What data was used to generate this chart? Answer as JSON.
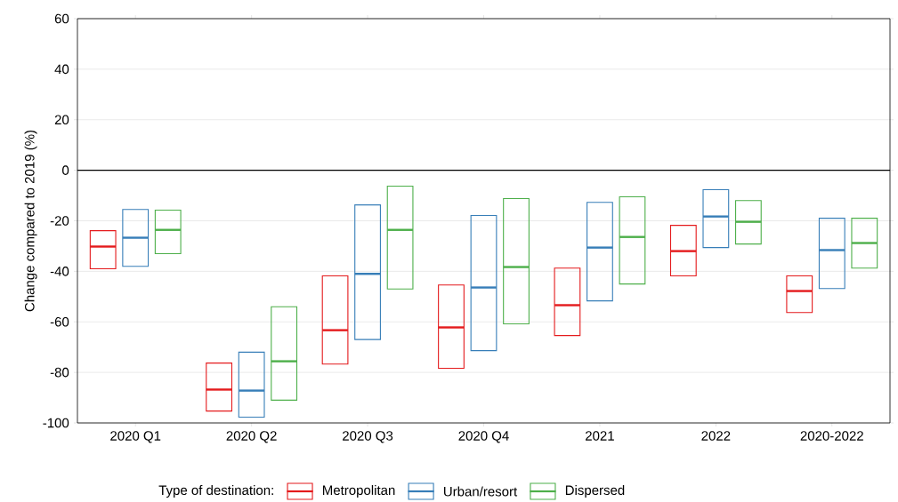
{
  "chart_data": {
    "type": "box",
    "ylabel": "Change compared to 2019 (%)",
    "legend_title": "Type of destination:",
    "categories": [
      "2020 Q1",
      "2020 Q2",
      "2020 Q3",
      "2020 Q4",
      "2021",
      "2022",
      "2020-2022"
    ],
    "ylim": [
      -100,
      60
    ],
    "yticks": [
      -100,
      -80,
      -60,
      -40,
      -20,
      0,
      20,
      40,
      60
    ],
    "grid": "y",
    "legend": "bottom",
    "ref_lines": [
      {
        "axis": "y",
        "value": 0,
        "color": "#000000"
      }
    ],
    "series": [
      {
        "name": "Metropolitan",
        "color": "#e41a1c",
        "boxes": [
          {
            "low": -39,
            "q1": -39,
            "median": -30.2,
            "q3": -23.9,
            "high": -23.9
          },
          {
            "low": -95.3,
            "q1": -95.3,
            "median": -86.8,
            "q3": -76.3,
            "high": -76.3
          },
          {
            "low": -76.7,
            "q1": -76.7,
            "median": -63.3,
            "q3": -41.8,
            "high": -41.8
          },
          {
            "low": -78.4,
            "q1": -78.4,
            "median": -62.2,
            "q3": -45.4,
            "high": -45.4
          },
          {
            "low": -65.4,
            "q1": -65.4,
            "median": -53.4,
            "q3": -38.7,
            "high": -38.7
          },
          {
            "low": -41.8,
            "q1": -41.8,
            "median": -32,
            "q3": -21.8,
            "high": -21.8
          },
          {
            "low": -56.3,
            "q1": -56.3,
            "median": -47.8,
            "q3": -41.8,
            "high": -41.8
          }
        ]
      },
      {
        "name": "Urban/resort",
        "color": "#377eb8",
        "boxes": [
          {
            "low": -38,
            "q1": -38,
            "median": -26.7,
            "q3": -15.5,
            "high": -15.5
          },
          {
            "low": -97.7,
            "q1": -97.7,
            "median": -87.2,
            "q3": -72,
            "high": -72
          },
          {
            "low": -67,
            "q1": -67,
            "median": -41,
            "q3": -13.7,
            "high": -13.7
          },
          {
            "low": -71.4,
            "q1": -71.4,
            "median": -46.4,
            "q3": -17.9,
            "high": -17.9
          },
          {
            "low": -51.7,
            "q1": -51.7,
            "median": -30.6,
            "q3": -12.7,
            "high": -12.7
          },
          {
            "low": -30.6,
            "q1": -30.6,
            "median": -18.3,
            "q3": -7.7,
            "high": -7.7
          },
          {
            "low": -46.8,
            "q1": -46.8,
            "median": -31.6,
            "q3": -19,
            "high": -19
          }
        ]
      },
      {
        "name": "Dispersed",
        "color": "#4daf4a",
        "boxes": [
          {
            "low": -33,
            "q1": -33,
            "median": -23.6,
            "q3": -15.8,
            "high": -15.8
          },
          {
            "low": -91,
            "q1": -91,
            "median": -75.6,
            "q3": -54,
            "high": -54
          },
          {
            "low": -47,
            "q1": -47,
            "median": -23.6,
            "q3": -6.3,
            "high": -6.3
          },
          {
            "low": -60.8,
            "q1": -60.8,
            "median": -38.3,
            "q3": -11.2,
            "high": -11.2
          },
          {
            "low": -45,
            "q1": -45,
            "median": -26.4,
            "q3": -10.5,
            "high": -10.5
          },
          {
            "low": -29.2,
            "q1": -29.2,
            "median": -20.4,
            "q3": -12,
            "high": -12
          },
          {
            "low": -38.7,
            "q1": -38.7,
            "median": -28.8,
            "q3": -19,
            "high": -19
          }
        ]
      }
    ]
  }
}
